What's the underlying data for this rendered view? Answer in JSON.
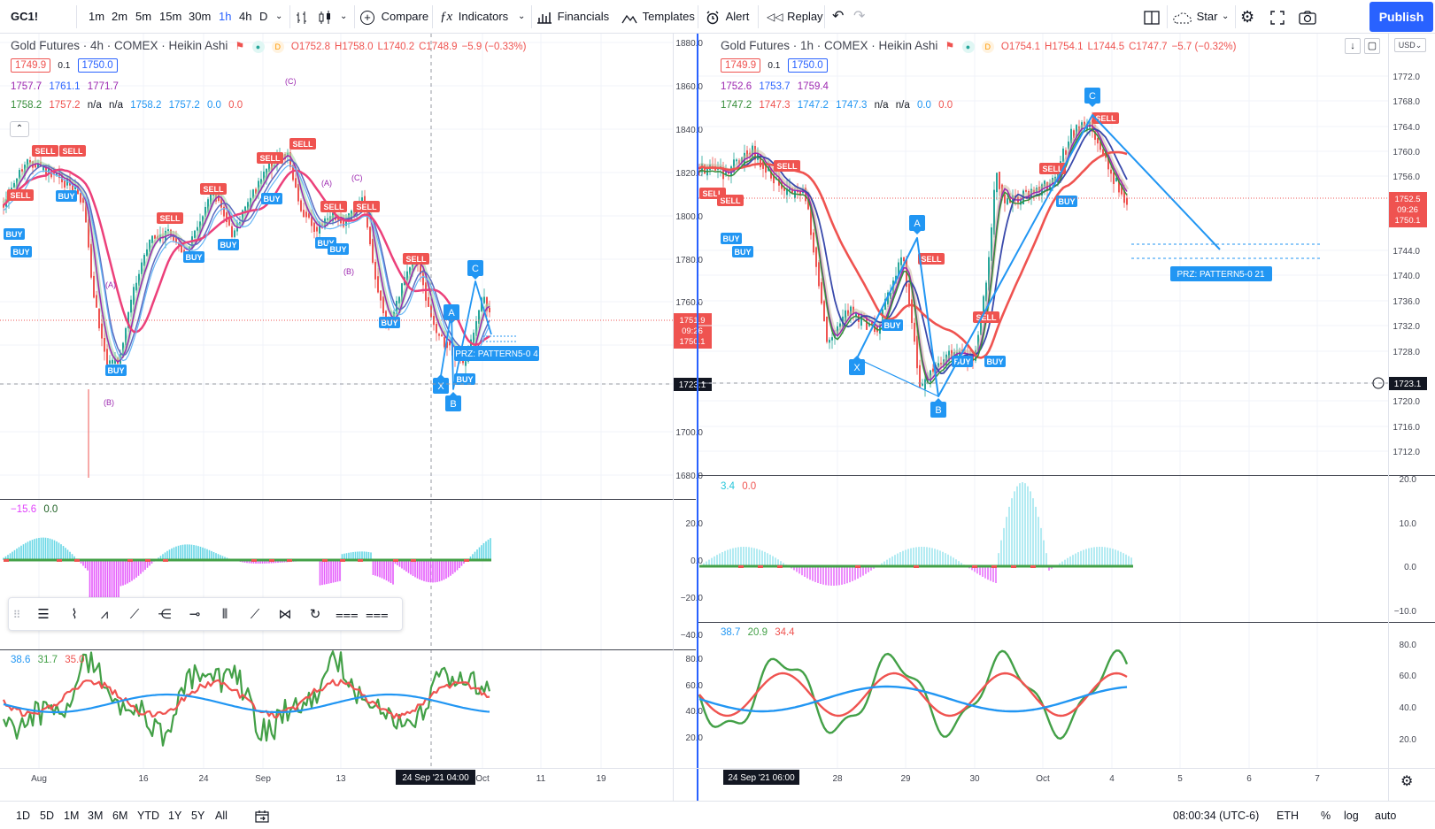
{
  "toolbar": {
    "symbol": "GC1!",
    "intervals": [
      "1m",
      "2m",
      "5m",
      "15m",
      "30m",
      "1h",
      "4h",
      "D"
    ],
    "active_interval": "1h",
    "compare": "Compare",
    "indicators": "Indicators",
    "financials": "Financials",
    "templates": "Templates",
    "alert": "Alert",
    "replay": "Replay",
    "star": "Star",
    "publish": "Publish"
  },
  "colors": {
    "up": "#26a69a",
    "down": "#ef5350",
    "accent": "#2962ff",
    "pattern": "#2196f3",
    "purple": "#9c27b0"
  },
  "left_pane": {
    "title": "Gold Futures · 4h · COMEX · Heikin Ashi",
    "ohlc": {
      "o": "O1752.8",
      "h": "H1758.0",
      "l": "L1740.2",
      "c": "C1748.9",
      "chg": "−5.9 (−0.33%)"
    },
    "bid": "1749.9",
    "spread": "0.1",
    "ask": "1750.0",
    "ind1": [
      "1757.7",
      "1761.1",
      "1771.7"
    ],
    "ind2": [
      "1758.2",
      "1757.2",
      "n/a",
      "n/a",
      "1758.2",
      "1757.2",
      "0.0",
      "0.0"
    ],
    "osc1": [
      "−15.6",
      "0.0"
    ],
    "osc2": [
      "38.6",
      "31.7",
      "35.0"
    ],
    "price_axis": [
      "1880.0",
      "1860.0",
      "1840.0",
      "1820.0",
      "1800.0",
      "1780.0",
      "1760.0",
      "1740.0",
      "1723.1",
      "1700.0",
      "1680.0"
    ],
    "osc1_axis": [
      "20.0",
      "0.0",
      "−20.0",
      "−40.0"
    ],
    "osc2_axis": [
      "80.0",
      "60.0",
      "40.0",
      "20.0"
    ],
    "x_axis": [
      "Aug",
      "16",
      "24",
      "Sep",
      "13",
      "Oct",
      "11",
      "19"
    ],
    "cursor_date": "24 Sep '21   04:00",
    "price_label": [
      "1751.9",
      "09:26",
      "1750.1"
    ],
    "crosshair_price": "1723.1",
    "prz": "PRZ: PATTERN5-0 4",
    "points": [
      "X",
      "A",
      "B",
      "C"
    ],
    "waves": [
      "(A)",
      "(B)",
      "(C)",
      "(A)",
      "(B)",
      "(C)"
    ],
    "signals": {
      "sell": "SELL",
      "buy": "BUY"
    }
  },
  "right_pane": {
    "title": "Gold Futures · 1h · COMEX · Heikin Ashi",
    "ohlc": {
      "o": "O1754.1",
      "h": "H1754.1",
      "l": "L1744.5",
      "c": "C1747.7",
      "chg": "−5.7 (−0.32%)"
    },
    "bid": "1749.9",
    "spread": "0.1",
    "ask": "1750.0",
    "ind1": [
      "1752.6",
      "1753.7",
      "1759.4"
    ],
    "ind2": [
      "1747.2",
      "1747.3",
      "1747.2",
      "1747.3",
      "n/a",
      "n/a",
      "0.0",
      "0.0"
    ],
    "osc1": [
      "3.4",
      "0.0"
    ],
    "osc2": [
      "38.7",
      "20.9",
      "34.4"
    ],
    "price_axis": [
      "1772.0",
      "1768.0",
      "1764.0",
      "1760.0",
      "1756.0",
      "1744.0",
      "1740.0",
      "1736.0",
      "1732.0",
      "1728.0",
      "1723.1",
      "1720.0",
      "1716.0",
      "1712.0"
    ],
    "osc1_axis": [
      "20.0",
      "10.0",
      "0.0",
      "−10.0"
    ],
    "osc2_axis": [
      "80.0",
      "60.0",
      "40.0",
      "20.0"
    ],
    "x_axis": [
      "28",
      "29",
      "30",
      "Oct",
      "4",
      "5",
      "6",
      "7"
    ],
    "cursor_date": "24 Sep '21   06:00",
    "price_label": [
      "1752.5",
      "09:26",
      "1750.1"
    ],
    "crosshair_price": "1723.1",
    "currency": "USD",
    "prz": "PRZ: PATTERN5-0 21",
    "points": [
      "X",
      "A",
      "B",
      "C"
    ],
    "signals": {
      "sell": "SELL",
      "buy": "BUY"
    }
  },
  "bottombar": {
    "ranges": [
      "1D",
      "5D",
      "1M",
      "3M",
      "6M",
      "YTD",
      "1Y",
      "5Y",
      "All"
    ],
    "time": "08:00:34 (UTC-6)",
    "session": "ETH",
    "pct": "%",
    "log": "log",
    "auto": "auto"
  }
}
